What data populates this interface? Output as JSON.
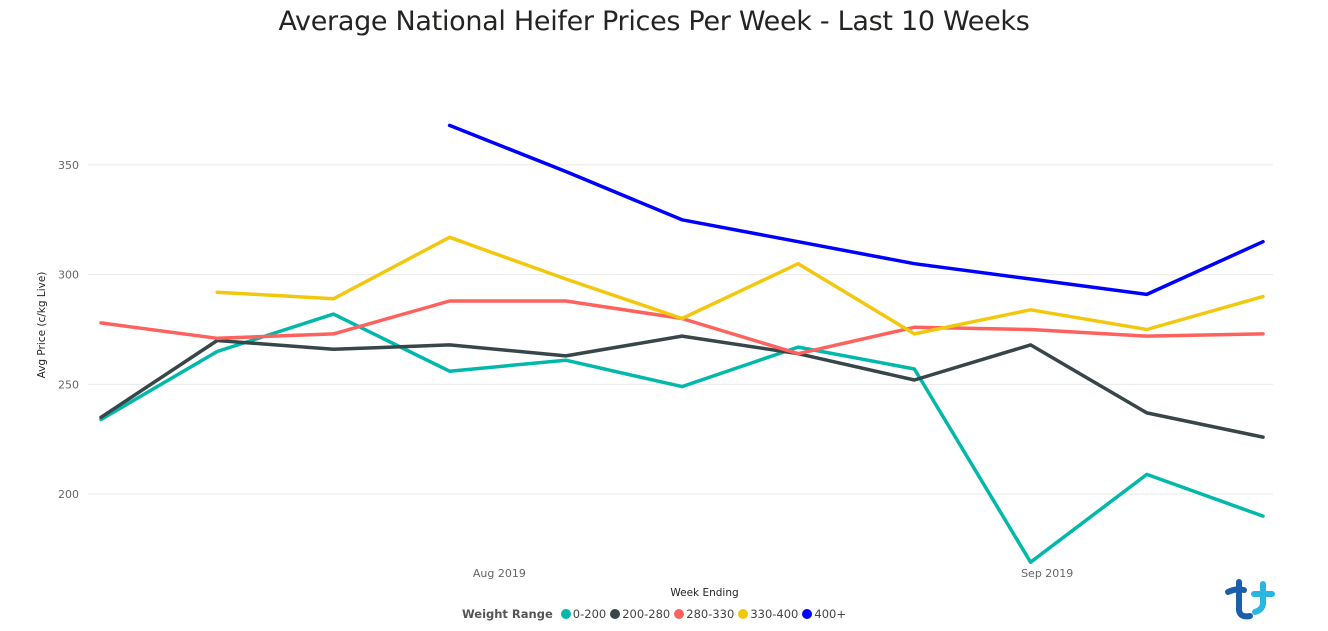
{
  "chart_data": {
    "type": "line",
    "title": "Average National Heifer Prices Per Week - Last 10 Weeks",
    "xlabel": "Week Ending",
    "ylabel": "Avg Price (c/kg Live)",
    "x": [
      "2019-07-06",
      "2019-07-13",
      "2019-07-20",
      "2019-07-27",
      "2019-08-03",
      "2019-08-10",
      "2019-08-17",
      "2019-08-24",
      "2019-08-31",
      "2019-09-07",
      "2019-09-14"
    ],
    "x_ticks": [
      {
        "label": "Aug 2019",
        "date": "2019-07-30"
      },
      {
        "label": "Sep 2019",
        "date": "2019-09-01"
      }
    ],
    "ylim": [
      170,
      375
    ],
    "y_ticks": [
      200,
      250,
      300,
      350
    ],
    "grid": true,
    "legend": {
      "title": "Weight Range",
      "position": "bottom-center"
    },
    "series": [
      {
        "name": "0-200",
        "color": "#01B8AA",
        "values": [
          234,
          265,
          282,
          256,
          261,
          249,
          267,
          257,
          169,
          209,
          190
        ]
      },
      {
        "name": "200-280",
        "color": "#374649",
        "values": [
          235,
          270,
          266,
          268,
          263,
          272,
          264,
          252,
          268,
          237,
          226
        ]
      },
      {
        "name": "280-330",
        "color": "#FD625E",
        "values": [
          278,
          271,
          273,
          288,
          288,
          280,
          264,
          276,
          275,
          272,
          273
        ]
      },
      {
        "name": "330-400",
        "color": "#F2C80F",
        "values": [
          null,
          292,
          289,
          317,
          298,
          280,
          305,
          273,
          284,
          275,
          290
        ]
      },
      {
        "name": "400+",
        "color": "#0000FF",
        "values": [
          null,
          null,
          null,
          368,
          347,
          325,
          315,
          305,
          298,
          291,
          315
        ]
      }
    ]
  },
  "logo": {
    "name": "brand-logo",
    "colors": [
      "#1a5fa8",
      "#2bb6e0"
    ]
  }
}
